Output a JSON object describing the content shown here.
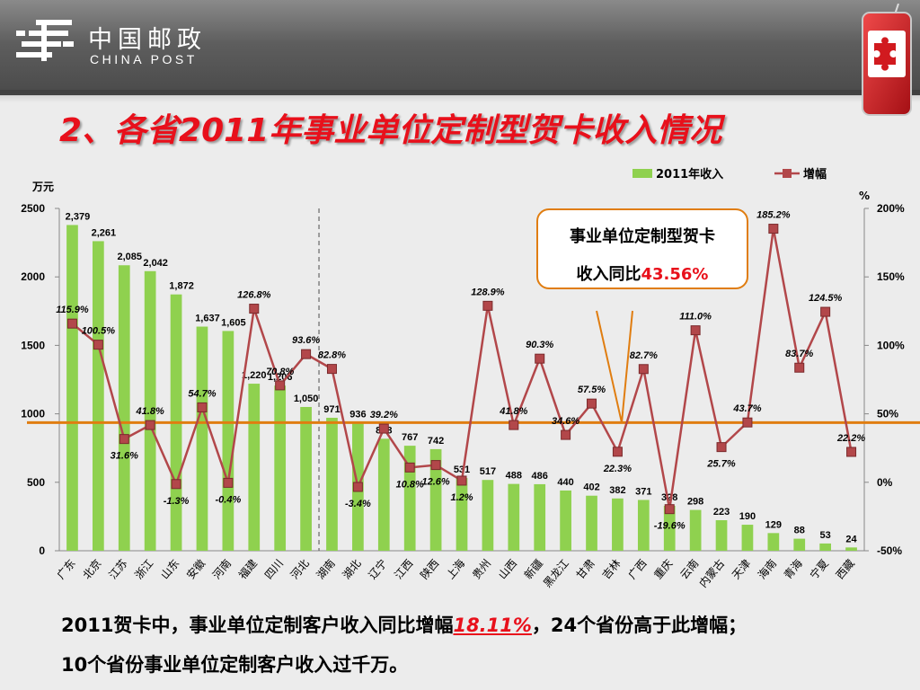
{
  "header": {
    "logo_cn": "中国邮政",
    "logo_en": "CHINA POST",
    "logo_icon": "china-post-logo-icon",
    "phone_icon": "puzzle-phone-icon"
  },
  "title": "2、各省2011年事业单位定制型贺卡收入情况",
  "callout": {
    "line1": "事业单位定制型贺卡",
    "line2_prefix": "收入同比",
    "line2_value": "43.56%"
  },
  "summary": {
    "line1_prefix": "2011贺卡中，事业单位定制客户收入同比增幅",
    "line1_value": "18.11%",
    "line1_suffix": "，24个省份高于此增幅；",
    "line2": "10个省份事业单位定制客户收入过千万。"
  },
  "colors": {
    "bar": "#8fd14f",
    "line": "#b2474a",
    "reference": "#e07d10",
    "title": "#e8101b"
  },
  "chart_data": {
    "type": "bar",
    "categories": [
      "广东",
      "北京",
      "江苏",
      "浙江",
      "山东",
      "安徽",
      "河南",
      "福建",
      "四川",
      "河北",
      "湖南",
      "湖北",
      "辽宁",
      "江西",
      "陕西",
      "上海",
      "贵州",
      "山西",
      "新疆",
      "黑龙江",
      "甘肃",
      "吉林",
      "广西",
      "重庆",
      "云南",
      "内蒙古",
      "天津",
      "海南",
      "青海",
      "宁夏",
      "西藏"
    ],
    "series": [
      {
        "name": "2011年收入",
        "type": "bar",
        "axis": "left",
        "values": [
          2379,
          2261,
          2085,
          2042,
          1872,
          1637,
          1605,
          1220,
          1206,
          1050,
          971,
          936,
          818,
          767,
          742,
          531,
          517,
          488,
          486,
          440,
          402,
          382,
          371,
          328,
          298,
          223,
          190,
          129,
          88,
          53,
          24
        ],
        "labels": [
          "2,379",
          "2,261",
          "2,085",
          "2,042",
          "1,872",
          "1,637",
          "1,605",
          "1,220",
          "1,206",
          "1,050",
          "971",
          "936",
          "818",
          "767",
          "742",
          "531",
          "517",
          "488",
          "486",
          "440",
          "402",
          "382",
          "371",
          "328",
          "298",
          "223",
          "190",
          "129",
          "88",
          "53",
          "24"
        ]
      },
      {
        "name": "增幅",
        "type": "line",
        "axis": "right",
        "values": [
          115.9,
          100.5,
          31.6,
          41.8,
          -1.3,
          54.7,
          -0.4,
          126.8,
          70.8,
          93.6,
          82.8,
          -3.4,
          39.2,
          10.8,
          12.6,
          1.2,
          128.9,
          41.8,
          90.3,
          34.6,
          57.5,
          22.3,
          82.7,
          -19.6,
          111.0,
          25.7,
          43.7,
          185.2,
          83.7,
          124.5,
          22.2
        ],
        "labels": [
          "115.9%",
          "100.5%",
          "31.6%",
          "41.8%",
          "-1.3%",
          "54.7%",
          "-0.4%",
          "126.8%",
          "70.8%",
          "93.6%",
          "82.8%",
          "-3.4%",
          "39.2%",
          "10.8%",
          "12.6%",
          "1.2%",
          "128.9%",
          "41.8%",
          "90.3%",
          "34.6%",
          "57.5%",
          "22.3%",
          "82.7%",
          "-19.6%",
          "111.0%",
          "25.7%",
          "43.7%",
          "185.2%",
          "83.7%",
          "124.5%",
          "22.2%"
        ]
      }
    ],
    "y_left": {
      "unit": "万元",
      "ticks": [
        "0",
        "500",
        "1000",
        "1500",
        "2000",
        "2500"
      ],
      "min": 0,
      "max": 2500
    },
    "y_right": {
      "unit": "%",
      "ticks": [
        "-50%",
        "0%",
        "50%",
        "100%",
        "150%",
        "200%"
      ],
      "min": -50,
      "max": 200
    },
    "reference_line": 43.56,
    "divider_after_index": 9,
    "legend": "top-right"
  }
}
